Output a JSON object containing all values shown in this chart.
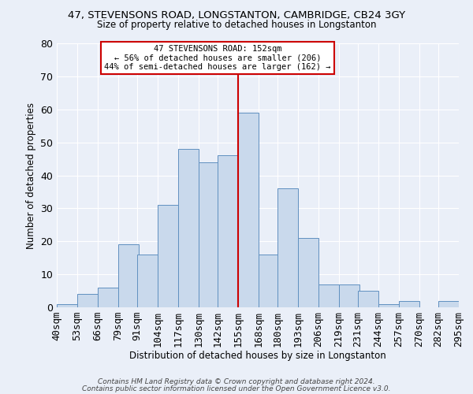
{
  "title": "47, STEVENSONS ROAD, LONGSTANTON, CAMBRIDGE, CB24 3GY",
  "subtitle": "Size of property relative to detached houses in Longstanton",
  "xlabel": "Distribution of detached houses by size in Longstanton",
  "ylabel": "Number of detached properties",
  "bar_color": "#c9d9ec",
  "bar_edge_color": "#6090c0",
  "background_color": "#eaeff8",
  "grid_color": "#ffffff",
  "vline_x": 155,
  "vline_color": "#cc0000",
  "annotation_text": "47 STEVENSONS ROAD: 152sqm\n← 56% of detached houses are smaller (206)\n44% of semi-detached houses are larger (162) →",
  "annotation_box_color": "white",
  "annotation_box_edge_color": "#cc0000",
  "footer_line1": "Contains HM Land Registry data © Crown copyright and database right 2024.",
  "footer_line2": "Contains public sector information licensed under the Open Government Licence v3.0.",
  "bins_left": [
    40,
    53,
    66,
    79,
    91,
    104,
    117,
    130,
    142,
    155,
    168,
    180,
    193,
    206,
    219,
    231,
    244,
    257,
    270,
    282
  ],
  "bin_width": 13,
  "counts": [
    1,
    4,
    6,
    19,
    16,
    31,
    48,
    44,
    46,
    59,
    16,
    36,
    21,
    7,
    7,
    5,
    1,
    2,
    0,
    2
  ],
  "tick_labels": [
    "40sqm",
    "53sqm",
    "66sqm",
    "79sqm",
    "91sqm",
    "104sqm",
    "117sqm",
    "130sqm",
    "142sqm",
    "155sqm",
    "168sqm",
    "180sqm",
    "193sqm",
    "206sqm",
    "219sqm",
    "231sqm",
    "244sqm",
    "257sqm",
    "270sqm",
    "282sqm",
    "295sqm"
  ],
  "ylim": [
    0,
    80
  ],
  "yticks": [
    0,
    10,
    20,
    30,
    40,
    50,
    60,
    70,
    80
  ]
}
